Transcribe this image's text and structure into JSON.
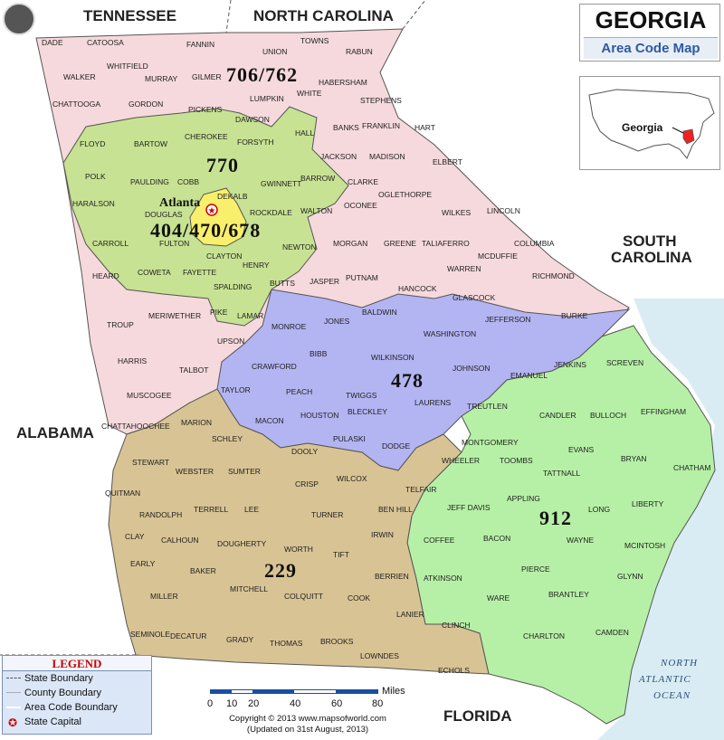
{
  "title": {
    "main": "GEORGIA",
    "sub": "Area Code Map"
  },
  "inset": {
    "label": "Georgia"
  },
  "neighbors": {
    "tennessee": "TENNESSEE",
    "north_carolina": "NORTH CAROLINA",
    "south_carolina_1": "SOUTH",
    "south_carolina_2": "CAROLINA",
    "alabama": "ALABAMA",
    "florida": "FLORIDA"
  },
  "ocean": {
    "line1": "NORTH",
    "line2": "ATLANTIC",
    "line3": "OCEAN"
  },
  "area_codes": {
    "north": "706/762",
    "metro": "770",
    "atlanta": "404/470/678",
    "central": "478",
    "south": "912",
    "southwest": "229"
  },
  "capital": "Atlanta",
  "colors": {
    "ac_706": "#f6d9dc",
    "ac_770": "#c7e292",
    "ac_404": "#f8ef6c",
    "ac_478": "#b3b4f2",
    "ac_912": "#b6f0a6",
    "ac_229": "#d8c394",
    "outside": "#ffffff",
    "water": "#d9ecf3"
  },
  "counties": [
    "DADE",
    "CATOOSA",
    "WHITFIELD",
    "WALKER",
    "CHATTOOGA",
    "GORDON",
    "MURRAY",
    "FANNIN",
    "UNION",
    "TOWNS",
    "RABUN",
    "GILMER",
    "WHITE",
    "HABERSHAM",
    "LUMPKIN",
    "STEPHENS",
    "PICKENS",
    "DAWSON",
    "FRANKLIN",
    "BANKS",
    "HART",
    "FLOYD",
    "BARTOW",
    "CHEROKEE",
    "FORSYTH",
    "HALL",
    "JACKSON",
    "MADISON",
    "ELBERT",
    "POLK",
    "PAULDING",
    "COBB",
    "GWINNETT",
    "BARROW",
    "CLARKE",
    "OGLETHORPE",
    "HARALSON",
    "DOUGLAS",
    "DEKALB",
    "WALTON",
    "OCONEE",
    "WILKES",
    "LINCOLN",
    "CARROLL",
    "FULTON",
    "ROCKDALE",
    "NEWTON",
    "MORGAN",
    "GREENE",
    "TALIAFERRO",
    "COLUMBIA",
    "HEARD",
    "COWETA",
    "FAYETTE",
    "CLAYTON",
    "HENRY",
    "MCDUFFIE",
    "WARREN",
    "RICHMOND",
    "SPALDING",
    "BUTTS",
    "JASPER",
    "PUTNAM",
    "HANCOCK",
    "GLASCOCK",
    "TROUP",
    "MERIWETHER",
    "PIKE",
    "LAMAR",
    "MONROE",
    "JONES",
    "BALDWIN",
    "WASHINGTON",
    "JEFFERSON",
    "BURKE",
    "UPSON",
    "HARRIS",
    "TALBOT",
    "CRAWFORD",
    "BIBB",
    "WILKINSON",
    "JOHNSON",
    "EMANUEL",
    "JENKINS",
    "SCREVEN",
    "MUSCOGEE",
    "TAYLOR",
    "PEACH",
    "TWIGGS",
    "LAURENS",
    "CHATTAHOOCHEE",
    "MARION",
    "MACON",
    "HOUSTON",
    "BLECKLEY",
    "TREUTLEN",
    "CANDLER",
    "BULLOCH",
    "EFFINGHAM",
    "SCHLEY",
    "PULASKI",
    "DODGE",
    "MONTGOMERY",
    "EVANS",
    "STEWART",
    "WEBSTER",
    "SUMTER",
    "DOOLY",
    "WILCOX",
    "WHEELER",
    "TOOMBS",
    "TATTNALL",
    "BRYAN",
    "CHATHAM",
    "QUITMAN",
    "CRISP",
    "TELFAIR",
    "RANDOLPH",
    "TERRELL",
    "LEE",
    "TURNER",
    "BEN HILL",
    "JEFF DAVIS",
    "APPLING",
    "LONG",
    "LIBERTY",
    "CLAY",
    "CALHOUN",
    "DOUGHERTY",
    "IRWIN",
    "COFFEE",
    "BACON",
    "WAYNE",
    "MCINTOSH",
    "EARLY",
    "BAKER",
    "WORTH",
    "TIFT",
    "BERRIEN",
    "ATKINSON",
    "PIERCE",
    "GLYNN",
    "MILLER",
    "MITCHELL",
    "COLQUITT",
    "COOK",
    "WARE",
    "BRANTLEY",
    "LANIER",
    "CLINCH",
    "CHARLTON",
    "CAMDEN",
    "SEMINOLE",
    "DECATUR",
    "GRADY",
    "THOMAS",
    "BROOKS",
    "LOWNDES",
    "ECHOLS"
  ],
  "legend": {
    "title": "LEGEND",
    "items": [
      "State Boundary",
      "County Boundary",
      "Area Code Boundary",
      "State Capital"
    ]
  },
  "scale": {
    "unit": "Miles",
    "ticks": [
      "0",
      "10",
      "20",
      "40",
      "60",
      "80"
    ]
  },
  "copyright": {
    "line1": "Copyright © 2013 www.mapsofworld.com",
    "line2": "(Updated on 31st August, 2013)"
  }
}
